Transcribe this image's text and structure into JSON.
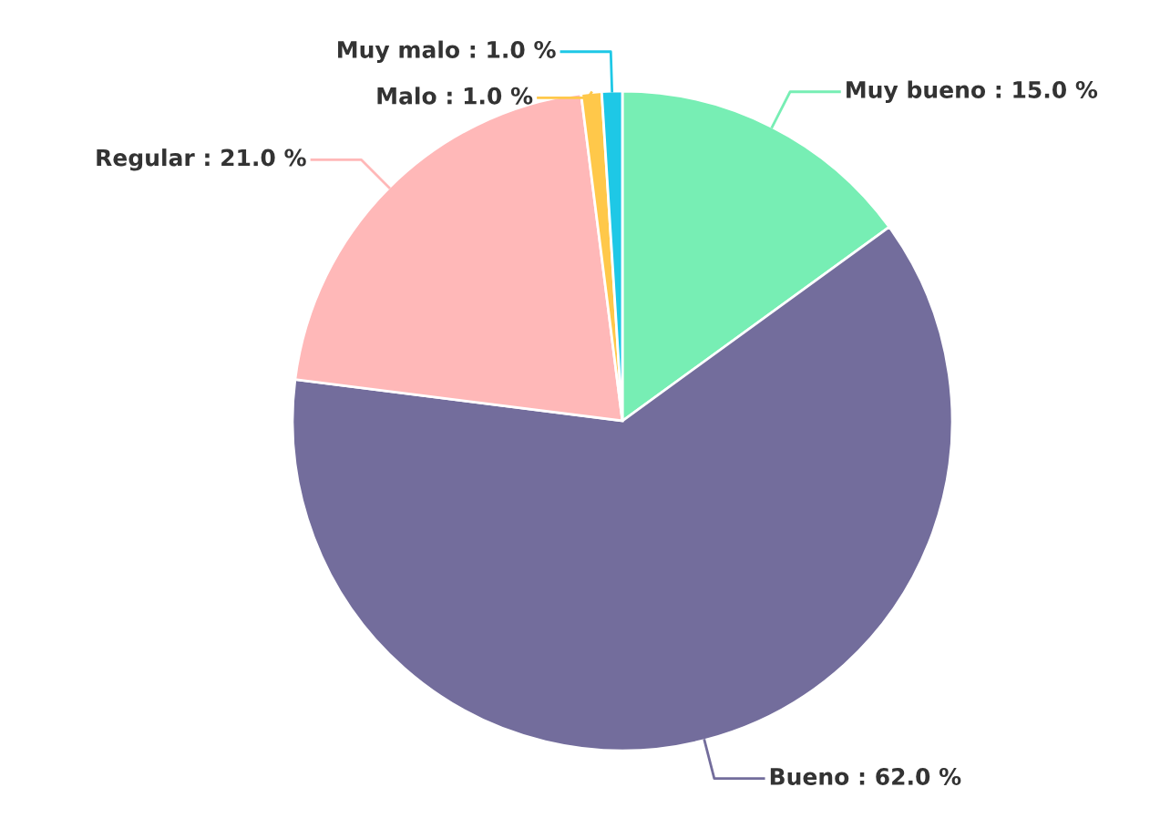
{
  "chart_data": {
    "type": "pie",
    "categories": [
      "Muy bueno",
      "Bueno",
      "Regular",
      "Malo",
      "Muy malo"
    ],
    "values": [
      15.0,
      62.0,
      21.0,
      1.0,
      1.0
    ],
    "colors": [
      "#77eeb4",
      "#736d9c",
      "#ffb8b8",
      "#ffc84a",
      "#1ec8e6"
    ],
    "value_labels": [
      ": 15.0 %",
      ": 62.0 %",
      ": 21.0 %",
      ": 1.0 %",
      ": 1.0 %"
    ],
    "legend": false
  }
}
